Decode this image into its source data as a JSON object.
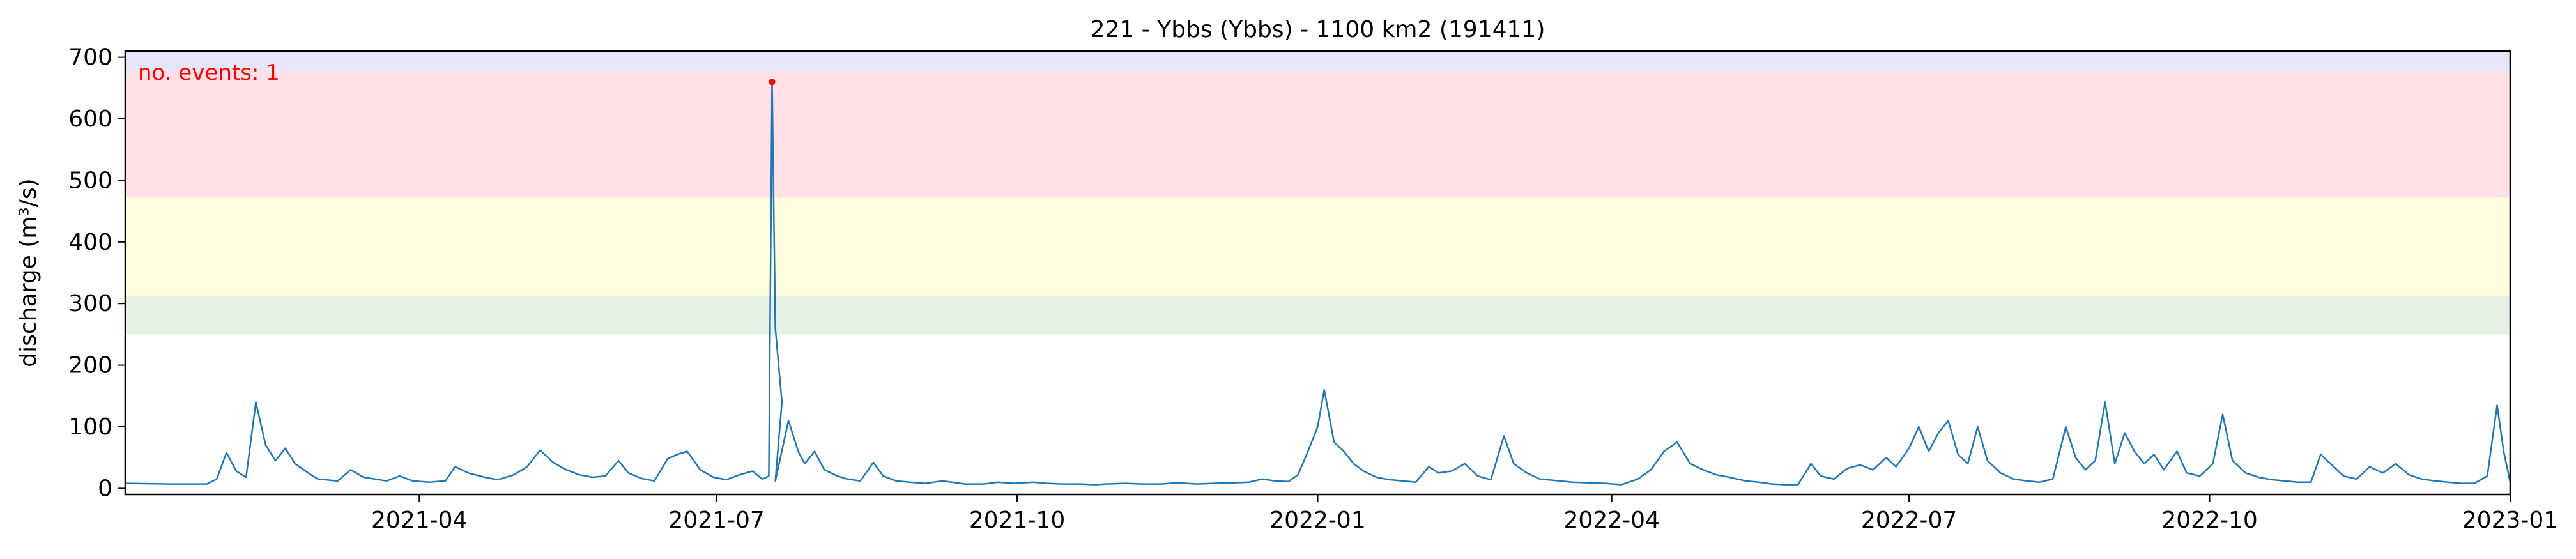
{
  "chart_data": {
    "type": "line",
    "title": "221 - Ybbs (Ybbs) - 1100 km2 (191411)",
    "xlabel": "",
    "ylabel": "discharge (m³/s)",
    "x_ticks": [
      "2021-04",
      "2021-07",
      "2021-10",
      "2022-01",
      "2022-04",
      "2022-07",
      "2022-10",
      "2023-01"
    ],
    "y_ticks": [
      0,
      100,
      200,
      300,
      400,
      500,
      600,
      700
    ],
    "xlim": [
      "2021-01-01",
      "2023-01-01"
    ],
    "ylim": [
      -10,
      710
    ],
    "grid": false,
    "annotation": "no. events: 1",
    "bands": [
      {
        "from": 678,
        "to": 710,
        "color": "#e6e6fa"
      },
      {
        "from": 472,
        "to": 678,
        "color": "#ffe0e6"
      },
      {
        "from": 313,
        "to": 472,
        "color": "#ffffe0"
      },
      {
        "from": 250,
        "to": 313,
        "color": "#e6f2e6"
      }
    ],
    "events": [
      {
        "x": "2021-07-18",
        "y": 660
      }
    ],
    "series": [
      {
        "color": "#1f77b4",
        "points": [
          [
            "2021-01-01",
            8
          ],
          [
            "2021-01-15",
            7
          ],
          [
            "2021-01-26",
            7
          ],
          [
            "2021-01-29",
            15
          ],
          [
            "2021-02-01",
            58
          ],
          [
            "2021-02-04",
            28
          ],
          [
            "2021-02-07",
            18
          ],
          [
            "2021-02-10",
            140
          ],
          [
            "2021-02-13",
            70
          ],
          [
            "2021-02-16",
            45
          ],
          [
            "2021-02-19",
            65
          ],
          [
            "2021-02-22",
            40
          ],
          [
            "2021-02-26",
            25
          ],
          [
            "2021-03-01",
            15
          ],
          [
            "2021-03-07",
            12
          ],
          [
            "2021-03-11",
            30
          ],
          [
            "2021-03-15",
            18
          ],
          [
            "2021-03-22",
            12
          ],
          [
            "2021-03-26",
            20
          ],
          [
            "2021-03-30",
            12
          ],
          [
            "2021-04-04",
            10
          ],
          [
            "2021-04-09",
            12
          ],
          [
            "2021-04-12",
            35
          ],
          [
            "2021-04-16",
            25
          ],
          [
            "2021-04-21",
            18
          ],
          [
            "2021-04-25",
            14
          ],
          [
            "2021-04-30",
            22
          ],
          [
            "2021-05-04",
            35
          ],
          [
            "2021-05-08",
            62
          ],
          [
            "2021-05-12",
            42
          ],
          [
            "2021-05-16",
            30
          ],
          [
            "2021-05-20",
            22
          ],
          [
            "2021-05-24",
            18
          ],
          [
            "2021-05-28",
            20
          ],
          [
            "2021-06-01",
            45
          ],
          [
            "2021-06-04",
            25
          ],
          [
            "2021-06-08",
            16
          ],
          [
            "2021-06-12",
            12
          ],
          [
            "2021-06-16",
            48
          ],
          [
            "2021-06-19",
            55
          ],
          [
            "2021-06-22",
            60
          ],
          [
            "2021-06-26",
            30
          ],
          [
            "2021-06-30",
            18
          ],
          [
            "2021-07-04",
            14
          ],
          [
            "2021-07-08",
            22
          ],
          [
            "2021-07-12",
            28
          ],
          [
            "2021-07-15",
            15
          ],
          [
            "2021-07-19",
            12
          ],
          [
            "2021-07-23",
            110
          ],
          [
            "2021-07-26",
            60
          ],
          [
            "2021-07-28",
            40
          ],
          [
            "2021-07-31",
            60
          ],
          [
            "2021-08-03",
            30
          ],
          [
            "2021-08-07",
            20
          ],
          [
            "2021-08-10",
            15
          ],
          [
            "2021-08-14",
            12
          ],
          [
            "2021-08-18",
            42
          ],
          [
            "2021-08-21",
            20
          ],
          [
            "2021-08-25",
            12
          ],
          [
            "2021-08-29",
            10
          ],
          [
            "2021-09-03",
            8
          ],
          [
            "2021-09-08",
            12
          ],
          [
            "2021-09-11",
            10
          ],
          [
            "2021-09-15",
            7
          ],
          [
            "2021-09-21",
            7
          ],
          [
            "2021-09-25",
            10
          ],
          [
            "2021-09-30",
            8
          ],
          [
            "2021-10-06",
            10
          ],
          [
            "2021-10-10",
            8
          ],
          [
            "2021-10-15",
            7
          ],
          [
            "2021-10-20",
            7
          ],
          [
            "2021-10-25",
            6
          ],
          [
            "2021-10-28",
            7
          ],
          [
            "2021-11-03",
            8
          ],
          [
            "2021-11-08",
            7
          ],
          [
            "2021-11-14",
            7
          ],
          [
            "2021-11-19",
            9
          ],
          [
            "2021-11-25",
            7
          ],
          [
            "2021-11-30",
            8
          ],
          [
            "2021-12-06",
            9
          ],
          [
            "2021-12-11",
            10
          ],
          [
            "2021-12-15",
            15
          ],
          [
            "2021-12-19",
            12
          ],
          [
            "2021-12-23",
            11
          ],
          [
            "2021-12-26",
            22
          ],
          [
            "2021-12-29",
            60
          ],
          [
            "2022-01-01",
            100
          ],
          [
            "2022-01-03",
            160
          ],
          [
            "2022-01-06",
            75
          ],
          [
            "2022-01-09",
            60
          ],
          [
            "2022-01-12",
            40
          ],
          [
            "2022-01-15",
            28
          ],
          [
            "2022-01-19",
            18
          ],
          [
            "2022-01-23",
            14
          ],
          [
            "2022-01-27",
            12
          ],
          [
            "2022-01-31",
            10
          ],
          [
            "2022-02-04",
            35
          ],
          [
            "2022-02-07",
            25
          ],
          [
            "2022-02-11",
            28
          ],
          [
            "2022-02-15",
            40
          ],
          [
            "2022-02-19",
            20
          ],
          [
            "2022-02-23",
            14
          ],
          [
            "2022-02-27",
            85
          ],
          [
            "2022-03-02",
            40
          ],
          [
            "2022-03-06",
            25
          ],
          [
            "2022-03-10",
            15
          ],
          [
            "2022-03-16",
            12
          ],
          [
            "2022-03-20",
            10
          ],
          [
            "2022-03-25",
            9
          ],
          [
            "2022-03-30",
            8
          ],
          [
            "2022-04-04",
            6
          ],
          [
            "2022-04-09",
            15
          ],
          [
            "2022-04-13",
            30
          ],
          [
            "2022-04-17",
            60
          ],
          [
            "2022-04-21",
            75
          ],
          [
            "2022-04-25",
            40
          ],
          [
            "2022-04-29",
            30
          ],
          [
            "2022-05-03",
            22
          ],
          [
            "2022-05-07",
            18
          ],
          [
            "2022-05-12",
            12
          ],
          [
            "2022-05-16",
            10
          ],
          [
            "2022-05-20",
            7
          ],
          [
            "2022-05-24",
            6
          ],
          [
            "2022-05-28",
            6
          ],
          [
            "2022-06-01",
            40
          ],
          [
            "2022-06-04",
            20
          ],
          [
            "2022-06-08",
            15
          ],
          [
            "2022-06-12",
            32
          ],
          [
            "2022-06-16",
            38
          ],
          [
            "2022-06-20",
            30
          ],
          [
            "2022-06-24",
            50
          ],
          [
            "2022-06-27",
            35
          ],
          [
            "2022-07-01",
            65
          ],
          [
            "2022-07-04",
            100
          ],
          [
            "2022-07-07",
            60
          ],
          [
            "2022-07-10",
            90
          ],
          [
            "2022-07-13",
            110
          ],
          [
            "2022-07-16",
            55
          ],
          [
            "2022-07-19",
            40
          ],
          [
            "2022-07-22",
            100
          ],
          [
            "2022-07-25",
            45
          ],
          [
            "2022-07-29",
            25
          ],
          [
            "2022-08-02",
            15
          ],
          [
            "2022-08-06",
            12
          ],
          [
            "2022-08-10",
            10
          ],
          [
            "2022-08-14",
            15
          ],
          [
            "2022-08-18",
            100
          ],
          [
            "2022-08-21",
            50
          ],
          [
            "2022-08-24",
            30
          ],
          [
            "2022-08-27",
            45
          ],
          [
            "2022-08-30",
            140
          ],
          [
            "2022-09-02",
            40
          ],
          [
            "2022-09-05",
            90
          ],
          [
            "2022-09-08",
            60
          ],
          [
            "2022-09-11",
            40
          ],
          [
            "2022-09-14",
            55
          ],
          [
            "2022-09-17",
            30
          ],
          [
            "2022-09-21",
            60
          ],
          [
            "2022-09-24",
            25
          ],
          [
            "2022-09-28",
            20
          ],
          [
            "2022-10-02",
            40
          ],
          [
            "2022-10-05",
            120
          ],
          [
            "2022-10-08",
            45
          ],
          [
            "2022-10-12",
            25
          ],
          [
            "2022-10-16",
            18
          ],
          [
            "2022-10-20",
            14
          ],
          [
            "2022-10-24",
            12
          ],
          [
            "2022-10-28",
            10
          ],
          [
            "2022-11-01",
            10
          ],
          [
            "2022-11-04",
            55
          ],
          [
            "2022-11-07",
            40
          ],
          [
            "2022-11-11",
            20
          ],
          [
            "2022-11-15",
            15
          ],
          [
            "2022-11-19",
            35
          ],
          [
            "2022-11-23",
            25
          ],
          [
            "2022-11-27",
            40
          ],
          [
            "2022-12-01",
            22
          ],
          [
            "2022-12-05",
            15
          ],
          [
            "2022-12-09",
            12
          ],
          [
            "2022-12-13",
            10
          ],
          [
            "2022-12-17",
            8
          ],
          [
            "2022-12-21",
            8
          ],
          [
            "2022-12-25",
            20
          ],
          [
            "2022-12-28",
            135
          ],
          [
            "2022-12-30",
            60
          ],
          [
            "2023-01-01",
            10
          ]
        ]
      }
    ]
  }
}
